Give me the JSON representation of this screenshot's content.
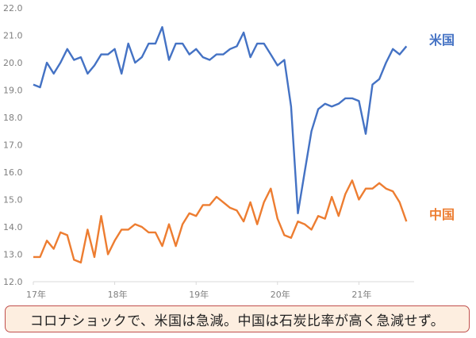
{
  "chart_data": {
    "type": "line",
    "title": "",
    "xlabel": "",
    "ylabel": "",
    "ylim": [
      12.0,
      22.0
    ],
    "yticks": [
      "12.0",
      "13.0",
      "14.0",
      "15.0",
      "16.0",
      "17.0",
      "18.0",
      "19.0",
      "20.0",
      "21.0",
      "22.0"
    ],
    "xticks": [
      "17年",
      "18年",
      "19年",
      "20年",
      "21年"
    ],
    "grid": false,
    "legend_position": "inline-right",
    "x_note": "monthly, Jan 2017 to Aug 2021 (56 points)",
    "series": [
      {
        "name": "米国",
        "color": "#4472c4",
        "values": [
          19.2,
          19.1,
          20.0,
          19.6,
          20.0,
          20.5,
          20.1,
          20.2,
          19.6,
          19.9,
          20.3,
          20.3,
          20.5,
          19.6,
          20.7,
          20.0,
          20.2,
          20.7,
          20.7,
          21.3,
          20.1,
          20.7,
          20.7,
          20.3,
          20.5,
          20.2,
          20.1,
          20.3,
          20.3,
          20.5,
          20.6,
          21.1,
          20.2,
          20.7,
          20.7,
          20.3,
          19.9,
          20.1,
          18.4,
          14.5,
          16.0,
          17.5,
          18.3,
          18.5,
          18.4,
          18.5,
          18.7,
          18.7,
          18.6,
          17.4,
          19.2,
          19.4,
          20.0,
          20.5,
          20.3,
          20.6
        ]
      },
      {
        "name": "中国",
        "color": "#ed7d31",
        "values": [
          12.9,
          12.9,
          13.5,
          13.2,
          13.8,
          13.7,
          12.8,
          12.7,
          13.9,
          12.9,
          14.4,
          13.0,
          13.5,
          13.9,
          13.9,
          14.1,
          14.0,
          13.8,
          13.8,
          13.3,
          14.1,
          13.3,
          14.1,
          14.5,
          14.4,
          14.8,
          14.8,
          15.1,
          14.9,
          14.7,
          14.6,
          14.2,
          14.9,
          14.1,
          14.9,
          15.4,
          14.3,
          13.7,
          13.6,
          14.2,
          14.1,
          13.9,
          14.4,
          14.3,
          15.1,
          14.4,
          15.2,
          15.7,
          15.0,
          15.4,
          15.4,
          15.6,
          15.4,
          15.3,
          14.9,
          14.2
        ]
      }
    ],
    "annotations": [
      "米国",
      "中国"
    ]
  },
  "labels": {
    "us": "米国",
    "cn": "中国"
  },
  "axis": {
    "y": [
      "12.0",
      "13.0",
      "14.0",
      "15.0",
      "16.0",
      "17.0",
      "18.0",
      "19.0",
      "20.0",
      "21.0",
      "22.0"
    ],
    "x": [
      "17年",
      "18年",
      "19年",
      "20年",
      "21年"
    ]
  },
  "caption": "コロナショックで、米国は急減。中国は石炭比率が高く急減せず。",
  "colors": {
    "us": "#4472c4",
    "cn": "#ed7d31",
    "axis": "#d9d9d9",
    "tick_text": "#7f7f7f",
    "caption_bg": "#fdeee0",
    "caption_border": "#c0504d"
  }
}
